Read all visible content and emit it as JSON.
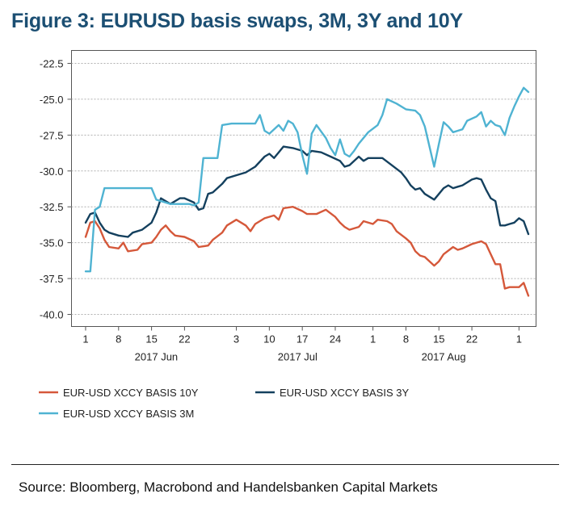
{
  "title": "Figure 3: EURUSD basis swaps, 3M, 3Y and 10Y",
  "source": "Source: Bloomberg, Macrobond and Handelsbanken Capital Markets",
  "chart_data": {
    "type": "line",
    "title": "Figure 3: EURUSD basis swaps, 3M, 3Y and 10Y",
    "xlabel": "",
    "ylabel": "",
    "ylim": [
      -40.0,
      -22.5
    ],
    "yticks": [
      -22.5,
      -25.0,
      -27.5,
      -30.0,
      -32.5,
      -35.0,
      -37.5,
      -40.0
    ],
    "ytick_labels": [
      "-22.5",
      "-25.0",
      "-27.5",
      "-30.0",
      "-32.5",
      "-35.0",
      "-37.5",
      "-40.0"
    ],
    "xlim": [
      "2017-06-01",
      "2017-09-03"
    ],
    "xticks": [
      {
        "date": "2017-06-01",
        "label": "1"
      },
      {
        "date": "2017-06-08",
        "label": "8"
      },
      {
        "date": "2017-06-15",
        "label": "15"
      },
      {
        "date": "2017-06-22",
        "label": "22"
      },
      {
        "date": "2017-07-03",
        "label": "3"
      },
      {
        "date": "2017-07-10",
        "label": "10"
      },
      {
        "date": "2017-07-17",
        "label": "17"
      },
      {
        "date": "2017-07-24",
        "label": "24"
      },
      {
        "date": "2017-08-01",
        "label": "1"
      },
      {
        "date": "2017-08-08",
        "label": "8"
      },
      {
        "date": "2017-08-15",
        "label": "15"
      },
      {
        "date": "2017-08-22",
        "label": "22"
      },
      {
        "date": "2017-09-01",
        "label": "1"
      }
    ],
    "month_labels": [
      {
        "label": "2017 Jun",
        "date": "2017-06-16"
      },
      {
        "label": "2017 Jul",
        "date": "2017-07-16"
      },
      {
        "label": "2017 Aug",
        "date": "2017-08-16"
      }
    ],
    "grid": true,
    "legend_position": "bottom",
    "series": [
      {
        "name": "EUR-USD XCCY BASIS 10Y",
        "color": "#d5583a",
        "points": [
          [
            "2017-06-01",
            -34.6
          ],
          [
            "2017-06-02",
            -33.6
          ],
          [
            "2017-06-03",
            -33.5
          ],
          [
            "2017-06-04",
            -34.0
          ],
          [
            "2017-06-05",
            -34.8
          ],
          [
            "2017-06-06",
            -35.3
          ],
          [
            "2017-06-08",
            -35.4
          ],
          [
            "2017-06-09",
            -35.0
          ],
          [
            "2017-06-10",
            -35.6
          ],
          [
            "2017-06-12",
            -35.5
          ],
          [
            "2017-06-13",
            -35.1
          ],
          [
            "2017-06-15",
            -35.0
          ],
          [
            "2017-06-16",
            -34.6
          ],
          [
            "2017-06-17",
            -34.1
          ],
          [
            "2017-06-18",
            -33.8
          ],
          [
            "2017-06-19",
            -34.2
          ],
          [
            "2017-06-20",
            -34.5
          ],
          [
            "2017-06-22",
            -34.6
          ],
          [
            "2017-06-24",
            -34.9
          ],
          [
            "2017-06-25",
            -35.3
          ],
          [
            "2017-06-27",
            -35.2
          ],
          [
            "2017-06-28",
            -34.8
          ],
          [
            "2017-06-30",
            -34.3
          ],
          [
            "2017-07-01",
            -33.8
          ],
          [
            "2017-07-03",
            -33.4
          ],
          [
            "2017-07-05",
            -33.8
          ],
          [
            "2017-07-06",
            -34.2
          ],
          [
            "2017-07-07",
            -33.7
          ],
          [
            "2017-07-09",
            -33.3
          ],
          [
            "2017-07-11",
            -33.1
          ],
          [
            "2017-07-12",
            -33.4
          ],
          [
            "2017-07-13",
            -32.6
          ],
          [
            "2017-07-15",
            -32.5
          ],
          [
            "2017-07-17",
            -32.8
          ],
          [
            "2017-07-18",
            -33.0
          ],
          [
            "2017-07-20",
            -33.0
          ],
          [
            "2017-07-22",
            -32.7
          ],
          [
            "2017-07-24",
            -33.2
          ],
          [
            "2017-07-25",
            -33.6
          ],
          [
            "2017-07-26",
            -33.9
          ],
          [
            "2017-07-27",
            -34.1
          ],
          [
            "2017-07-29",
            -33.9
          ],
          [
            "2017-07-30",
            -33.5
          ],
          [
            "2017-08-01",
            -33.7
          ],
          [
            "2017-08-02",
            -33.4
          ],
          [
            "2017-08-04",
            -33.5
          ],
          [
            "2017-08-05",
            -33.7
          ],
          [
            "2017-08-06",
            -34.2
          ],
          [
            "2017-08-08",
            -34.7
          ],
          [
            "2017-08-09",
            -35.0
          ],
          [
            "2017-08-10",
            -35.6
          ],
          [
            "2017-08-11",
            -35.9
          ],
          [
            "2017-08-12",
            -36.0
          ],
          [
            "2017-08-14",
            -36.6
          ],
          [
            "2017-08-15",
            -36.3
          ],
          [
            "2017-08-16",
            -35.8
          ],
          [
            "2017-08-18",
            -35.3
          ],
          [
            "2017-08-19",
            -35.5
          ],
          [
            "2017-08-20",
            -35.4
          ],
          [
            "2017-08-22",
            -35.1
          ],
          [
            "2017-08-24",
            -34.9
          ],
          [
            "2017-08-25",
            -35.1
          ],
          [
            "2017-08-26",
            -35.8
          ],
          [
            "2017-08-27",
            -36.5
          ],
          [
            "2017-08-28",
            -36.5
          ],
          [
            "2017-08-29",
            -38.2
          ],
          [
            "2017-08-30",
            -38.1
          ],
          [
            "2017-09-01",
            -38.1
          ],
          [
            "2017-09-02",
            -37.8
          ],
          [
            "2017-09-03",
            -38.7
          ]
        ]
      },
      {
        "name": "EUR-USD XCCY BASIS 3Y",
        "color": "#14405e",
        "points": [
          [
            "2017-06-01",
            -33.6
          ],
          [
            "2017-06-02",
            -33.0
          ],
          [
            "2017-06-03",
            -32.9
          ],
          [
            "2017-06-04",
            -33.6
          ],
          [
            "2017-06-05",
            -34.1
          ],
          [
            "2017-06-06",
            -34.3
          ],
          [
            "2017-06-08",
            -34.5
          ],
          [
            "2017-06-10",
            -34.6
          ],
          [
            "2017-06-11",
            -34.3
          ],
          [
            "2017-06-13",
            -34.1
          ],
          [
            "2017-06-15",
            -33.6
          ],
          [
            "2017-06-16",
            -32.9
          ],
          [
            "2017-06-17",
            -31.9
          ],
          [
            "2017-06-19",
            -32.3
          ],
          [
            "2017-06-21",
            -31.9
          ],
          [
            "2017-06-22",
            -31.9
          ],
          [
            "2017-06-24",
            -32.2
          ],
          [
            "2017-06-25",
            -32.7
          ],
          [
            "2017-06-26",
            -32.6
          ],
          [
            "2017-06-27",
            -31.6
          ],
          [
            "2017-06-28",
            -31.5
          ],
          [
            "2017-06-30",
            -30.9
          ],
          [
            "2017-07-01",
            -30.5
          ],
          [
            "2017-07-03",
            -30.3
          ],
          [
            "2017-07-05",
            -30.1
          ],
          [
            "2017-07-07",
            -29.7
          ],
          [
            "2017-07-09",
            -29.0
          ],
          [
            "2017-07-10",
            -28.8
          ],
          [
            "2017-07-11",
            -29.1
          ],
          [
            "2017-07-12",
            -28.7
          ],
          [
            "2017-07-13",
            -28.3
          ],
          [
            "2017-07-15",
            -28.4
          ],
          [
            "2017-07-17",
            -28.6
          ],
          [
            "2017-07-18",
            -28.9
          ],
          [
            "2017-07-19",
            -28.6
          ],
          [
            "2017-07-21",
            -28.7
          ],
          [
            "2017-07-23",
            -29.0
          ],
          [
            "2017-07-25",
            -29.3
          ],
          [
            "2017-07-26",
            -29.7
          ],
          [
            "2017-07-27",
            -29.6
          ],
          [
            "2017-07-29",
            -29.0
          ],
          [
            "2017-07-30",
            -29.3
          ],
          [
            "2017-07-31",
            -29.1
          ],
          [
            "2017-08-01",
            -29.1
          ],
          [
            "2017-08-03",
            -29.1
          ],
          [
            "2017-08-05",
            -29.6
          ],
          [
            "2017-08-07",
            -30.1
          ],
          [
            "2017-08-08",
            -30.5
          ],
          [
            "2017-08-09",
            -31.0
          ],
          [
            "2017-08-10",
            -31.3
          ],
          [
            "2017-08-11",
            -31.2
          ],
          [
            "2017-08-12",
            -31.6
          ],
          [
            "2017-08-14",
            -32.0
          ],
          [
            "2017-08-15",
            -31.6
          ],
          [
            "2017-08-16",
            -31.2
          ],
          [
            "2017-08-17",
            -31.0
          ],
          [
            "2017-08-18",
            -31.2
          ],
          [
            "2017-08-19",
            -31.1
          ],
          [
            "2017-08-20",
            -31.0
          ],
          [
            "2017-08-22",
            -30.6
          ],
          [
            "2017-08-23",
            -30.5
          ],
          [
            "2017-08-24",
            -30.6
          ],
          [
            "2017-08-25",
            -31.3
          ],
          [
            "2017-08-26",
            -31.9
          ],
          [
            "2017-08-27",
            -32.1
          ],
          [
            "2017-08-28",
            -33.8
          ],
          [
            "2017-08-29",
            -33.8
          ],
          [
            "2017-08-30",
            -33.7
          ],
          [
            "2017-08-31",
            -33.6
          ],
          [
            "2017-09-01",
            -33.3
          ],
          [
            "2017-09-02",
            -33.5
          ],
          [
            "2017-09-03",
            -34.4
          ]
        ]
      },
      {
        "name": "EUR-USD XCCY BASIS 3M",
        "color": "#4fb3d2",
        "points": [
          [
            "2017-06-01",
            -37.0
          ],
          [
            "2017-06-02",
            -37.0
          ],
          [
            "2017-06-03",
            -32.7
          ],
          [
            "2017-06-04",
            -32.5
          ],
          [
            "2017-06-05",
            -31.2
          ],
          [
            "2017-06-10",
            -31.2
          ],
          [
            "2017-06-14",
            -31.2
          ],
          [
            "2017-06-15",
            -31.2
          ],
          [
            "2017-06-16",
            -32.0
          ],
          [
            "2017-06-17",
            -32.1
          ],
          [
            "2017-06-19",
            -32.3
          ],
          [
            "2017-06-23",
            -32.3
          ],
          [
            "2017-06-24",
            -32.4
          ],
          [
            "2017-06-25",
            -32.2
          ],
          [
            "2017-06-26",
            -29.1
          ],
          [
            "2017-06-27",
            -29.1
          ],
          [
            "2017-06-29",
            -29.1
          ],
          [
            "2017-06-30",
            -26.8
          ],
          [
            "2017-07-02",
            -26.7
          ],
          [
            "2017-07-05",
            -26.7
          ],
          [
            "2017-07-07",
            -26.7
          ],
          [
            "2017-07-08",
            -26.1
          ],
          [
            "2017-07-09",
            -27.2
          ],
          [
            "2017-07-10",
            -27.4
          ],
          [
            "2017-07-12",
            -26.8
          ],
          [
            "2017-07-13",
            -27.2
          ],
          [
            "2017-07-14",
            -26.5
          ],
          [
            "2017-07-15",
            -26.7
          ],
          [
            "2017-07-16",
            -27.3
          ],
          [
            "2017-07-17",
            -28.9
          ],
          [
            "2017-07-18",
            -30.2
          ],
          [
            "2017-07-19",
            -27.4
          ],
          [
            "2017-07-20",
            -26.8
          ],
          [
            "2017-07-22",
            -27.7
          ],
          [
            "2017-07-23",
            -28.4
          ],
          [
            "2017-07-24",
            -28.9
          ],
          [
            "2017-07-25",
            -27.8
          ],
          [
            "2017-07-26",
            -28.8
          ],
          [
            "2017-07-27",
            -29.0
          ],
          [
            "2017-07-28",
            -28.6
          ],
          [
            "2017-07-29",
            -28.1
          ],
          [
            "2017-07-31",
            -27.3
          ],
          [
            "2017-08-02",
            -26.8
          ],
          [
            "2017-08-03",
            -26.1
          ],
          [
            "2017-08-04",
            -25.0
          ],
          [
            "2017-08-06",
            -25.3
          ],
          [
            "2017-08-08",
            -25.7
          ],
          [
            "2017-08-10",
            -25.8
          ],
          [
            "2017-08-11",
            -26.1
          ],
          [
            "2017-08-12",
            -26.9
          ],
          [
            "2017-08-14",
            -29.7
          ],
          [
            "2017-08-15",
            -28.1
          ],
          [
            "2017-08-16",
            -26.6
          ],
          [
            "2017-08-17",
            -26.9
          ],
          [
            "2017-08-18",
            -27.3
          ],
          [
            "2017-08-19",
            -27.2
          ],
          [
            "2017-08-20",
            -27.1
          ],
          [
            "2017-08-21",
            -26.5
          ],
          [
            "2017-08-23",
            -26.2
          ],
          [
            "2017-08-24",
            -25.9
          ],
          [
            "2017-08-25",
            -26.9
          ],
          [
            "2017-08-26",
            -26.5
          ],
          [
            "2017-08-27",
            -26.8
          ],
          [
            "2017-08-28",
            -26.9
          ],
          [
            "2017-08-29",
            -27.5
          ],
          [
            "2017-08-30",
            -26.3
          ],
          [
            "2017-08-31",
            -25.5
          ],
          [
            "2017-09-01",
            -24.8
          ],
          [
            "2017-09-02",
            -24.2
          ],
          [
            "2017-09-03",
            -24.5
          ]
        ]
      }
    ]
  }
}
